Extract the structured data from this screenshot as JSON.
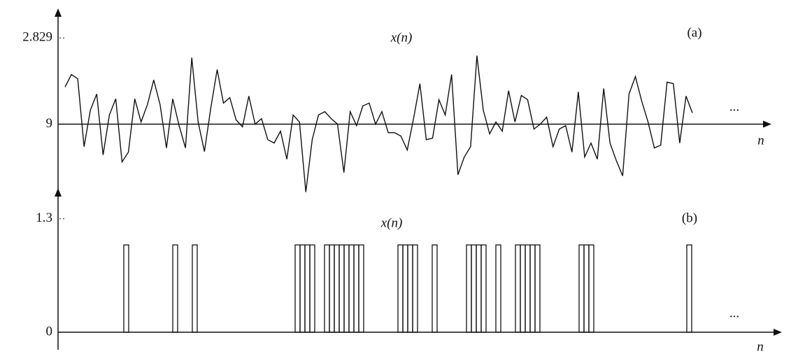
{
  "chart_data": [
    {
      "type": "line",
      "title": "x(n)",
      "label": "(a)",
      "x_label": "n",
      "continuation": "...",
      "color": "#111111",
      "ylim": [
        -2.4,
        3.8
      ],
      "yticks": [
        2.829,
        {
          "value": 0,
          "label": "9"
        }
      ],
      "values": [
        1.22,
        1.63,
        1.49,
        -0.74,
        0.46,
        0.99,
        -1.01,
        0.3,
        0.83,
        -1.24,
        -0.92,
        0.83,
        0.07,
        0.64,
        1.45,
        0.64,
        -0.78,
        0.83,
        -0.05,
        -0.78,
        2.18,
        0.07,
        -0.9,
        0.53,
        1.79,
        0.69,
        0.87,
        0.14,
        -0.09,
        0.92,
        0,
        0.18,
        -0.51,
        -0.62,
        -0.23,
        -1.15,
        0.3,
        0.07,
        -2.23,
        -0.51,
        0.3,
        0.41,
        0.18,
        0,
        -1.59,
        0.41,
        -0.05,
        0.6,
        0.69,
        0,
        0.41,
        -0.28,
        -0.28,
        -0.39,
        -0.85,
        0.18,
        1.33,
        -0.51,
        -0.46,
        0.8,
        0.3,
        1.63,
        -1.66,
        -1.08,
        -0.74,
        2.25,
        0.46,
        -0.32,
        0.07,
        -0.23,
        1.1,
        0.07,
        0.94,
        0.8,
        -0.16,
        0,
        0.23,
        -0.74,
        -0.16,
        -0.05,
        -0.92,
        1.06,
        -1.08,
        -0.62,
        -1.15,
        1.17,
        -0.62,
        -1.2,
        -1.7,
        0.99,
        1.56,
        0.76,
        0.07,
        -0.78,
        -0.69,
        1.38,
        1.33,
        -0.62,
        0.92,
        0.37
      ]
    },
    {
      "type": "pulse",
      "title": "x(n)",
      "label": "(b)",
      "x_label": "n",
      "continuation": "...",
      "color": "#111111",
      "ylim": [
        -0.2,
        1.65
      ],
      "yticks": [
        1.3,
        0
      ],
      "values": [
        0,
        0,
        0,
        0,
        0,
        0,
        0,
        0,
        0,
        0,
        0,
        0,
        1,
        0,
        0,
        0,
        0,
        0,
        0,
        0,
        0,
        0,
        1,
        0,
        0,
        0,
        1,
        0,
        0,
        0,
        0,
        0,
        0,
        0,
        0,
        0,
        0,
        0,
        0,
        0,
        0,
        0,
        0,
        0,
        0,
        0,
        0,
        1,
        1,
        1,
        1,
        0,
        0,
        1,
        1,
        1,
        1,
        1,
        1,
        1,
        1,
        0,
        0,
        0,
        0,
        0,
        0,
        0,
        1,
        1,
        1,
        1,
        0,
        0,
        0,
        1,
        0,
        0,
        0,
        0,
        0,
        0,
        1,
        1,
        1,
        1,
        0,
        0,
        1,
        0,
        0,
        0,
        1,
        1,
        1,
        1,
        1,
        0,
        0,
        0,
        0,
        0,
        0,
        0,
        0,
        1,
        1,
        1,
        0,
        0,
        0,
        0,
        0,
        0,
        0,
        0,
        0,
        0,
        0,
        0,
        0,
        0,
        0,
        0,
        0,
        0,
        0,
        1
      ]
    }
  ]
}
